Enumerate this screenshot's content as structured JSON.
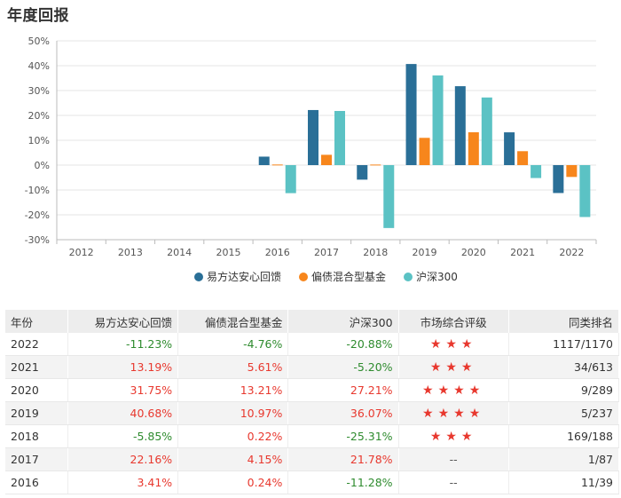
{
  "page": {
    "title": "年度回报"
  },
  "chart_data": {
    "type": "bar",
    "categories": [
      "2012",
      "2013",
      "2014",
      "2015",
      "2016",
      "2017",
      "2018",
      "2019",
      "2020",
      "2021",
      "2022"
    ],
    "series": [
      {
        "name": "易方达安心回馈",
        "color": "#2a6f97",
        "values": [
          null,
          null,
          null,
          null,
          3.41,
          22.16,
          -5.85,
          40.68,
          31.75,
          13.19,
          -11.23
        ]
      },
      {
        "name": "偏债混合型基金",
        "color": "#f7861c",
        "values": [
          null,
          null,
          null,
          null,
          0.24,
          4.15,
          0.22,
          10.97,
          13.21,
          5.61,
          -4.76
        ]
      },
      {
        "name": "沪深300",
        "color": "#5bc2c4",
        "values": [
          null,
          null,
          null,
          null,
          -11.28,
          21.78,
          -25.31,
          36.07,
          27.21,
          -5.2,
          -20.88
        ]
      }
    ],
    "ylim": [
      -30,
      50
    ],
    "yticks": [
      50,
      40,
      30,
      20,
      10,
      0,
      -10,
      -20,
      -30
    ],
    "ytick_labels": [
      "50%",
      "40%",
      "30%",
      "20%",
      "10%",
      "0%",
      "-10%",
      "-20%",
      "-30%"
    ],
    "grid": true,
    "legend": "bottom"
  },
  "table": {
    "headers": [
      "年份",
      "易方达安心回馈",
      "偏债混合型基金",
      "沪深300",
      "市场综合评级",
      "同类排名"
    ],
    "rows": [
      {
        "year": "2022",
        "fund": "-11.23%",
        "category": "-4.76%",
        "index": "-20.88%",
        "stars": 3,
        "rating_text": "",
        "rank": "1117/1170"
      },
      {
        "year": "2021",
        "fund": "13.19%",
        "category": "5.61%",
        "index": "-5.20%",
        "stars": 3,
        "rating_text": "",
        "rank": "34/613"
      },
      {
        "year": "2020",
        "fund": "31.75%",
        "category": "13.21%",
        "index": "27.21%",
        "stars": 4,
        "rating_text": "",
        "rank": "9/289"
      },
      {
        "year": "2019",
        "fund": "40.68%",
        "category": "10.97%",
        "index": "36.07%",
        "stars": 4,
        "rating_text": "",
        "rank": "5/237"
      },
      {
        "year": "2018",
        "fund": "-5.85%",
        "category": "0.22%",
        "index": "-25.31%",
        "stars": 3,
        "rating_text": "",
        "rank": "169/188"
      },
      {
        "year": "2017",
        "fund": "22.16%",
        "category": "4.15%",
        "index": "21.78%",
        "stars": 0,
        "rating_text": "--",
        "rank": "1/87"
      },
      {
        "year": "2016",
        "fund": "3.41%",
        "category": "0.24%",
        "index": "-11.28%",
        "stars": 0,
        "rating_text": "--",
        "rank": "11/39"
      }
    ],
    "colors": {
      "positive": "#e8382e",
      "negative": "#2e8b2e"
    }
  }
}
